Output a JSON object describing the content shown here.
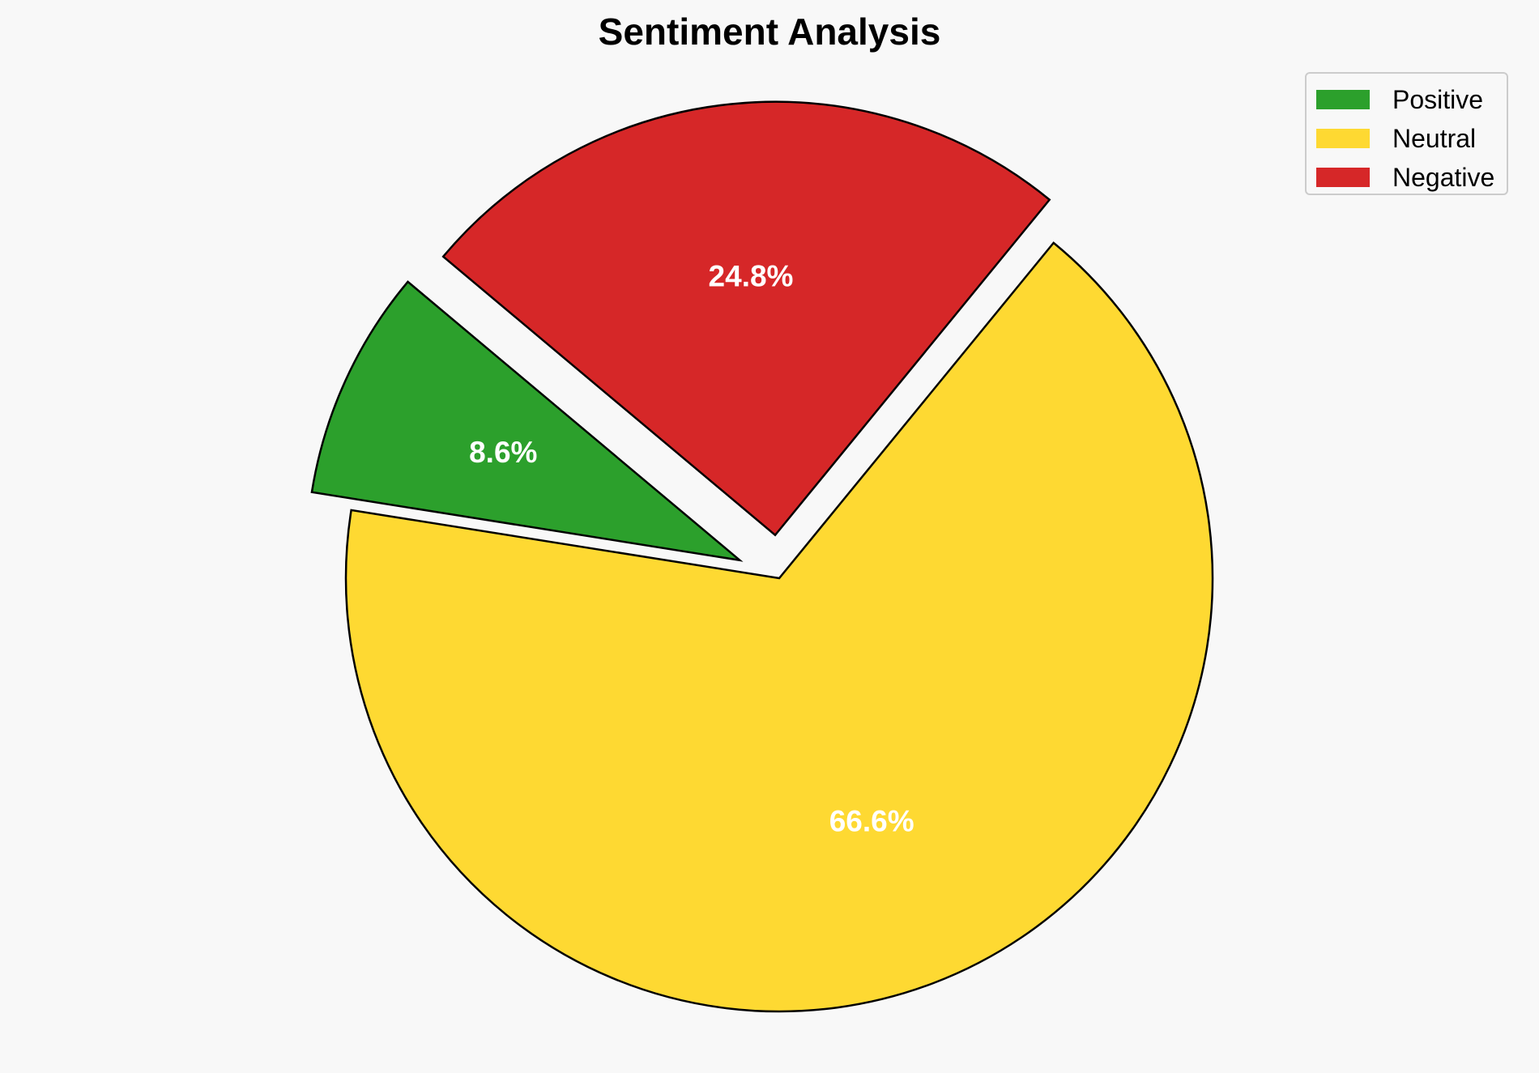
{
  "chart_data": {
    "type": "pie",
    "title": "Sentiment Analysis",
    "categories": [
      "Positive",
      "Neutral",
      "Negative"
    ],
    "values": [
      8.6,
      66.6,
      24.8
    ],
    "value_labels": [
      "8.6%",
      "66.6%",
      "24.8%"
    ],
    "colors": [
      "#2ca02c",
      "#fed932",
      "#d62728"
    ],
    "exploded": [
      true,
      false,
      true
    ],
    "legend": {
      "placement": "top-right",
      "entries": [
        "Positive",
        "Neutral",
        "Negative"
      ]
    }
  }
}
